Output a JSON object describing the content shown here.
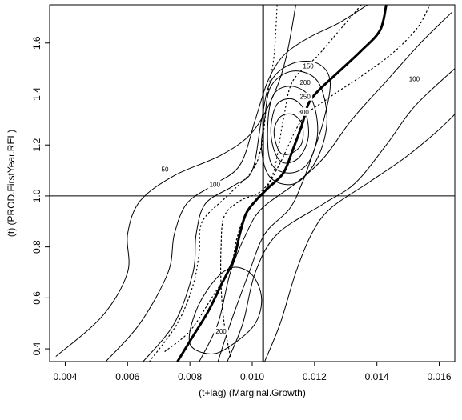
{
  "chart_data": {
    "type": "line",
    "title": "",
    "xlabel": "(t+lag) (Marginal.Growth)",
    "ylabel": "(t) (PROD.FirstYear.REL)",
    "xlim": [
      0.0035,
      0.0165
    ],
    "ylim": [
      0.35,
      1.75
    ],
    "x_ticks": [
      "0.004",
      "0.006",
      "0.008",
      "0.010",
      "0.012",
      "0.014",
      "0.016"
    ],
    "x_tick_values": [
      0.004,
      0.006,
      0.008,
      0.01,
      0.012,
      0.014,
      0.016
    ],
    "y_ticks": [
      "0.4",
      "0.6",
      "0.8",
      "1.0",
      "1.2",
      "1.4",
      "1.6"
    ],
    "y_tick_values": [
      0.4,
      0.6,
      0.8,
      1.0,
      1.2,
      1.4,
      1.6
    ],
    "grid": false,
    "reference_lines": {
      "vertical_x": 0.01035,
      "horizontal_y": 1.0
    },
    "contour_levels": [
      {
        "level": 50,
        "label": "50",
        "label_at": [
          0.0072,
          1.105
        ]
      },
      {
        "level": 100,
        "label": "100",
        "label_at": [
          0.0088,
          1.045
        ]
      },
      {
        "level": 100,
        "label": "100",
        "label_at": [
          0.0152,
          1.46
        ]
      },
      {
        "level": 150,
        "label": "150",
        "label_at": [
          0.0118,
          1.51
        ]
      },
      {
        "level": 200,
        "label": "200",
        "label_at": [
          0.0117,
          1.445
        ]
      },
      {
        "level": 250,
        "label": "250",
        "label_at": [
          0.0117,
          1.39
        ]
      },
      {
        "level": 300,
        "label": "300",
        "label_at": [
          0.01165,
          1.33
        ]
      },
      {
        "level": 200,
        "label": "200",
        "label_at": [
          0.009,
          0.47
        ]
      }
    ],
    "contours": [
      {
        "name": "",
        "points": [
          [
            0.0037,
            0.37
          ],
          [
            0.0052,
            0.53
          ],
          [
            0.006,
            0.7
          ],
          [
            0.006,
            0.85
          ],
          [
            0.0064,
            0.98
          ],
          [
            0.0075,
            1.08
          ],
          [
            0.009,
            1.16
          ],
          [
            0.01,
            1.25
          ],
          [
            0.0107,
            1.4
          ],
          [
            0.0111,
            1.55
          ],
          [
            0.0114,
            1.75
          ]
        ]
      },
      {
        "name": "",
        "points": [
          [
            0.0053,
            0.35
          ],
          [
            0.0064,
            0.5
          ],
          [
            0.0073,
            0.7
          ],
          [
            0.0075,
            0.85
          ],
          [
            0.0079,
            0.97
          ],
          [
            0.0087,
            1.04
          ],
          [
            0.0096,
            1.12
          ],
          [
            0.0101,
            1.3
          ],
          [
            0.0105,
            1.45
          ],
          [
            0.011,
            1.55
          ],
          [
            0.0118,
            1.62
          ],
          [
            0.0128,
            1.68
          ],
          [
            0.0137,
            1.75
          ]
        ]
      },
      {
        "name": "",
        "points": [
          [
            0.0065,
            0.35
          ],
          [
            0.0075,
            0.5
          ],
          [
            0.0081,
            0.7
          ],
          [
            0.0082,
            0.85
          ],
          [
            0.0085,
            0.97
          ],
          [
            0.0094,
            1.04
          ],
          [
            0.01,
            1.1
          ],
          [
            0.0103,
            1.3
          ],
          [
            0.0106,
            1.45
          ],
          [
            0.0113,
            1.52
          ],
          [
            0.0121,
            1.52
          ],
          [
            0.0125,
            1.45
          ],
          [
            0.0123,
            1.3
          ],
          [
            0.0119,
            1.15
          ],
          [
            0.0116,
            1.05
          ],
          [
            0.0112,
            0.95
          ],
          [
            0.0104,
            0.85
          ],
          [
            0.0099,
            0.7
          ],
          [
            0.0093,
            0.5
          ],
          [
            0.0089,
            0.35
          ]
        ]
      },
      {
        "name": "",
        "points": [
          [
            0.0083,
            0.35
          ],
          [
            0.0089,
            0.5
          ],
          [
            0.0093,
            0.7
          ],
          [
            0.0098,
            0.85
          ],
          [
            0.0103,
            0.95
          ],
          [
            0.0114,
            1.05
          ],
          [
            0.0123,
            1.15
          ],
          [
            0.0132,
            1.3
          ],
          [
            0.0143,
            1.45
          ],
          [
            0.0154,
            1.6
          ],
          [
            0.0164,
            1.72
          ]
        ]
      },
      {
        "name": "",
        "points": [
          [
            0.0092,
            0.35
          ],
          [
            0.0097,
            0.5
          ],
          [
            0.0101,
            0.7
          ],
          [
            0.0108,
            0.85
          ],
          [
            0.0123,
            0.97
          ],
          [
            0.0133,
            1.05
          ],
          [
            0.0143,
            1.2
          ],
          [
            0.0152,
            1.35
          ],
          [
            0.0165,
            1.5
          ]
        ]
      },
      {
        "name": "",
        "points": [
          [
            0.0104,
            0.35
          ],
          [
            0.0109,
            0.5
          ],
          [
            0.0114,
            0.7
          ],
          [
            0.0119,
            0.85
          ],
          [
            0.0125,
            0.95
          ],
          [
            0.0137,
            1.05
          ],
          [
            0.0149,
            1.15
          ],
          [
            0.0159,
            1.25
          ],
          [
            0.0165,
            1.32
          ]
        ]
      },
      {
        "name": "",
        "closed": true,
        "points": [
          [
            0.0104,
            1.3
          ],
          [
            0.0106,
            1.43
          ],
          [
            0.0113,
            1.49
          ],
          [
            0.0121,
            1.45
          ],
          [
            0.0124,
            1.3
          ],
          [
            0.0121,
            1.15
          ],
          [
            0.0114,
            1.05
          ],
          [
            0.0106,
            1.07
          ],
          [
            0.0103,
            1.18
          ]
        ]
      },
      {
        "name": "",
        "closed": true,
        "points": [
          [
            0.0105,
            1.28
          ],
          [
            0.0107,
            1.4
          ],
          [
            0.0113,
            1.43
          ],
          [
            0.0119,
            1.38
          ],
          [
            0.0121,
            1.25
          ],
          [
            0.0118,
            1.13
          ],
          [
            0.0112,
            1.09
          ],
          [
            0.0106,
            1.13
          ]
        ]
      },
      {
        "name": "",
        "closed": true,
        "points": [
          [
            0.0106,
            1.27
          ],
          [
            0.0108,
            1.36
          ],
          [
            0.0113,
            1.38
          ],
          [
            0.0117,
            1.33
          ],
          [
            0.0118,
            1.23
          ],
          [
            0.0115,
            1.15
          ],
          [
            0.011,
            1.13
          ],
          [
            0.0107,
            1.18
          ]
        ]
      },
      {
        "name": "",
        "closed": true,
        "points": [
          [
            0.0107,
            1.25
          ],
          [
            0.0109,
            1.31
          ],
          [
            0.0113,
            1.32
          ],
          [
            0.0116,
            1.28
          ],
          [
            0.0116,
            1.21
          ],
          [
            0.0113,
            1.17
          ],
          [
            0.0109,
            1.17
          ]
        ]
      },
      {
        "name": "",
        "closed": true,
        "points": [
          [
            0.008,
            0.42
          ],
          [
            0.0082,
            0.55
          ],
          [
            0.0088,
            0.67
          ],
          [
            0.0094,
            0.72
          ],
          [
            0.01,
            0.69
          ],
          [
            0.0103,
            0.6
          ],
          [
            0.0101,
            0.5
          ],
          [
            0.0094,
            0.42
          ],
          [
            0.0087,
            0.38
          ]
        ]
      }
    ],
    "dotted_curves": [
      {
        "name": "",
        "points": [
          [
            0.0072,
            0.39
          ],
          [
            0.008,
            0.47
          ],
          [
            0.0087,
            0.6
          ],
          [
            0.0093,
            0.72
          ],
          [
            0.0095,
            0.83
          ],
          [
            0.0098,
            0.93
          ],
          [
            0.0104,
            1.02
          ],
          [
            0.0109,
            1.13
          ],
          [
            0.0116,
            1.3
          ],
          [
            0.0124,
            1.38
          ],
          [
            0.0135,
            1.47
          ],
          [
            0.0145,
            1.56
          ],
          [
            0.0153,
            1.66
          ],
          [
            0.0157,
            1.75
          ]
        ]
      },
      {
        "name": "",
        "points": [
          [
            0.0093,
            0.37
          ],
          [
            0.0091,
            0.5
          ],
          [
            0.009,
            0.65
          ],
          [
            0.009,
            0.8
          ],
          [
            0.0091,
            0.92
          ],
          [
            0.0096,
            0.98
          ],
          [
            0.0103,
            1.02
          ],
          [
            0.0107,
            1.1
          ],
          [
            0.011,
            1.3
          ],
          [
            0.0113,
            1.45
          ],
          [
            0.0121,
            1.55
          ],
          [
            0.0128,
            1.65
          ],
          [
            0.0135,
            1.75
          ]
        ]
      },
      {
        "name": "",
        "points": [
          [
            0.0067,
            0.35
          ],
          [
            0.0076,
            0.5
          ],
          [
            0.0081,
            0.65
          ],
          [
            0.0083,
            0.78
          ],
          [
            0.0084,
            0.9
          ],
          [
            0.0092,
            1.0
          ],
          [
            0.01,
            1.1
          ],
          [
            0.0103,
            1.2
          ],
          [
            0.0105,
            1.4
          ],
          [
            0.0107,
            1.55
          ],
          [
            0.0108,
            1.75
          ]
        ]
      }
    ],
    "main_curve": {
      "name": "",
      "points": [
        [
          0.0076,
          0.35
        ],
        [
          0.0081,
          0.45
        ],
        [
          0.0086,
          0.55
        ],
        [
          0.009,
          0.65
        ],
        [
          0.0094,
          0.75
        ],
        [
          0.0096,
          0.85
        ],
        [
          0.0098,
          0.93
        ],
        [
          0.0101,
          0.98
        ],
        [
          0.0105,
          1.03
        ],
        [
          0.011,
          1.09
        ],
        [
          0.0113,
          1.18
        ],
        [
          0.0116,
          1.28
        ],
        [
          0.0118,
          1.36
        ],
        [
          0.0121,
          1.41
        ],
        [
          0.0128,
          1.49
        ],
        [
          0.0135,
          1.57
        ],
        [
          0.0141,
          1.65
        ],
        [
          0.0143,
          1.75
        ]
      ]
    }
  }
}
